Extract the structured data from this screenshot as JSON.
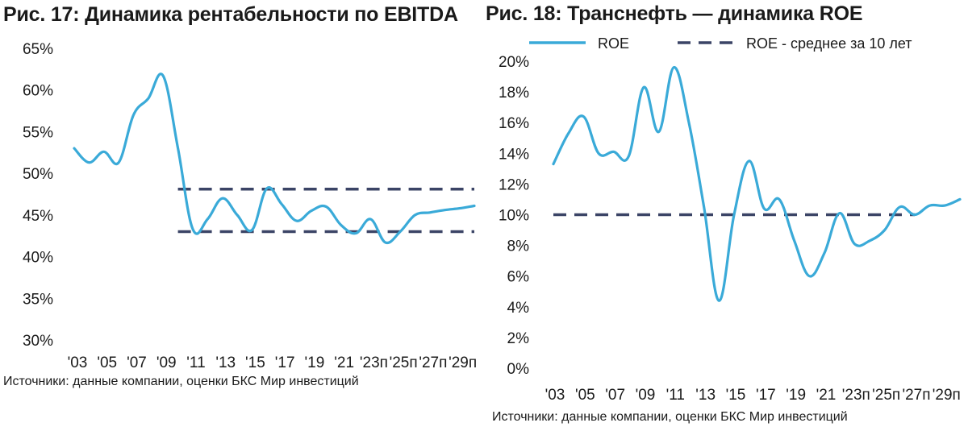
{
  "colors": {
    "line": "#3aaad8",
    "dashed": "#3b4466",
    "text": "#1a1a1a"
  },
  "charts": [
    {
      "title": "Рис. 17: Динамика рентабельности по EBITDA",
      "source": "Источники: данные компании, оценки БКС Мир инвестиций"
    },
    {
      "title": "Рис. 18: Транснефть — динамика ROE",
      "source": "Источники: данные компании, оценки БКС Мир инвестиций"
    }
  ],
  "chart_data": [
    {
      "type": "line",
      "title": "Рис. 17: Динамика рентабельности по EBITDA",
      "x": [
        2003,
        2004,
        2005,
        2006,
        2007,
        2008,
        2009,
        2010,
        2011,
        2012,
        2013,
        2014,
        2015,
        2016,
        2017,
        2018,
        2019,
        2020,
        2021,
        2022,
        2023,
        2024,
        2025,
        2026,
        2027,
        2028,
        2029,
        2030
      ],
      "x_tick_labels": [
        "'03",
        "'05",
        "'07",
        "'09",
        "'11",
        "'13",
        "'15",
        "'17",
        "'19",
        "'21",
        "'23п",
        "'25п",
        "'27п",
        "'29п"
      ],
      "series": [
        {
          "values": [
            53.0,
            51.3,
            52.6,
            51.3,
            57.0,
            59.0,
            61.7,
            53.0,
            43.3,
            44.5,
            47.0,
            45.0,
            43.2,
            48.2,
            46.3,
            44.3,
            45.5,
            46.0,
            43.8,
            42.8,
            44.5,
            41.7,
            43.0,
            45.0,
            45.3,
            45.6,
            45.8,
            46.1
          ]
        }
      ],
      "reference_lines": [
        {
          "from_x": 2010,
          "to_x": 2030,
          "value": 48.1
        },
        {
          "from_x": 2010,
          "to_x": 2030,
          "value": 43.0
        }
      ],
      "y_ticks": [
        "30%",
        "35%",
        "40%",
        "45%",
        "50%",
        "55%",
        "60%",
        "65%"
      ],
      "ylim": [
        30,
        65
      ]
    },
    {
      "type": "line",
      "title": "Рис. 18: Транснефть — динамика ROE",
      "x": [
        2003,
        2004,
        2005,
        2006,
        2007,
        2008,
        2009,
        2010,
        2011,
        2012,
        2013,
        2014,
        2015,
        2016,
        2017,
        2018,
        2019,
        2020,
        2021,
        2022,
        2023,
        2024,
        2025,
        2026,
        2027,
        2028,
        2029,
        2030
      ],
      "x_tick_labels": [
        "'03",
        "'05",
        "'07",
        "'09",
        "'11",
        "'13",
        "'15",
        "'17",
        "'19",
        "'21",
        "'23п",
        "'25п",
        "'27п",
        "'29п"
      ],
      "series": [
        {
          "name": "ROE",
          "values": [
            13.3,
            15.3,
            16.4,
            14.0,
            14.1,
            13.8,
            18.3,
            15.4,
            19.6,
            16.0,
            10.5,
            4.4,
            10.0,
            13.5,
            10.4,
            11.0,
            8.3,
            6.0,
            7.5,
            10.1,
            8.1,
            8.3,
            9.0,
            10.5,
            10.0,
            10.6,
            10.6,
            11.0
          ]
        }
      ],
      "reference_lines": [
        {
          "name": "ROE - среднее за 10 лет",
          "from_x": 2003,
          "to_x": 2027,
          "value": 10.0
        }
      ],
      "y_ticks": [
        "0%",
        "2%",
        "4%",
        "6%",
        "8%",
        "10%",
        "12%",
        "14%",
        "16%",
        "18%",
        "20%"
      ],
      "ylim": [
        0,
        20
      ],
      "legend": "top"
    }
  ]
}
